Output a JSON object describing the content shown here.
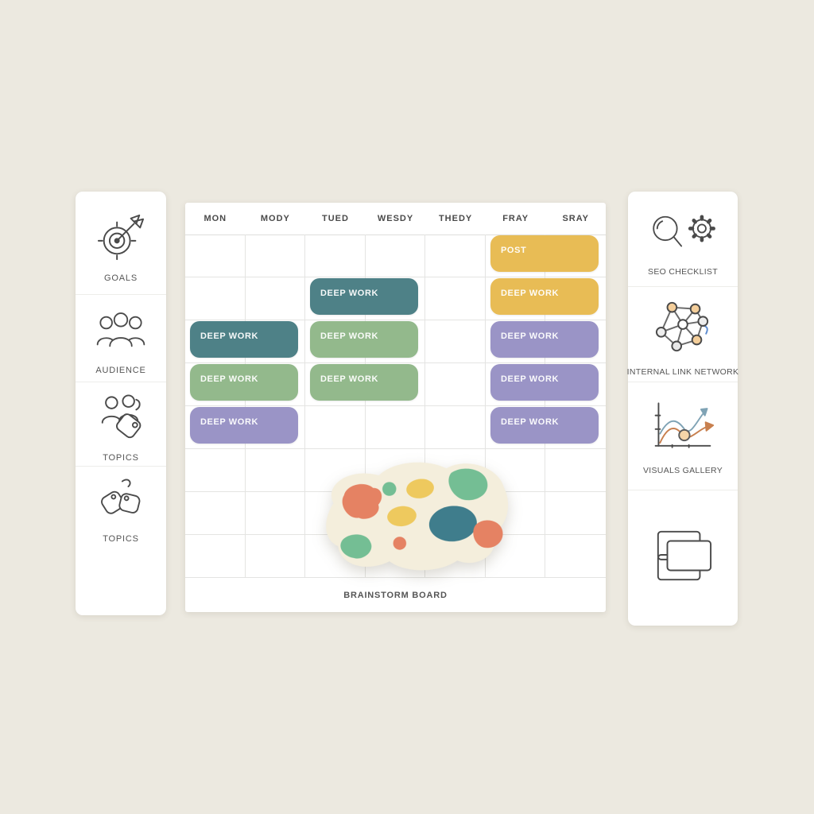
{
  "colors": {
    "background": "#ECE9E0",
    "panel": "#FFFFFF",
    "grid_line": "#E4E4E2",
    "teal": "#4E8187",
    "green": "#93B98C",
    "purple": "#9A94C6",
    "yellow": "#E8BC55",
    "board_cream": "#F4EEDC",
    "spot_salmon": "#E58263",
    "spot_green": "#74BE94",
    "spot_yellow": "#EEC95E",
    "spot_teal": "#3F7D8C"
  },
  "left_sidebar": {
    "items": [
      {
        "label": "GOALS",
        "icon": "goals-target-arrow-icon"
      },
      {
        "label": "AUDIENCE",
        "icon": "audience-people-icon"
      },
      {
        "label": "TOPICS",
        "icon": "topics-people-tag-icon"
      },
      {
        "label": "TOPICS",
        "icon": "topics-tags-icon"
      }
    ]
  },
  "calendar": {
    "day_headers": [
      "MON",
      "MODY",
      "TUED",
      "WESDY",
      "THEDY",
      "FRAY",
      "SRAY"
    ],
    "footer_label": "BRAINSTORM BOARD",
    "blocks": [
      {
        "day": "MON",
        "row": 3,
        "label": "DEEP WORK",
        "color": "teal"
      },
      {
        "day": "MON",
        "row": 4,
        "label": "DEEP WORK",
        "color": "green"
      },
      {
        "day": "MON",
        "row": 5,
        "label": "DEEP WORK",
        "color": "purple"
      },
      {
        "day": "TUED",
        "row": 2,
        "label": "DEEP WORK",
        "color": "teal"
      },
      {
        "day": "TUED",
        "row": 3,
        "label": "DEEP WORK",
        "color": "green"
      },
      {
        "day": "TUED",
        "row": 4,
        "label": "DEEP WORK",
        "color": "green"
      },
      {
        "day": "FRAY",
        "row": 1,
        "label": "POST",
        "color": "yellow"
      },
      {
        "day": "FRAY",
        "row": 2,
        "label": "DEEP WORK",
        "color": "yellow"
      },
      {
        "day": "FRAY",
        "row": 3,
        "label": "DEEP WORK",
        "color": "purple"
      },
      {
        "day": "FRAY",
        "row": 4,
        "label": "DEEP WORK",
        "color": "purple"
      },
      {
        "day": "FRAY",
        "row": 5,
        "label": "DEEP WORK",
        "color": "purple"
      }
    ]
  },
  "right_sidebar": {
    "items": [
      {
        "label": "SEO CHECKLIST",
        "icon": "seo-search-gear-icon"
      },
      {
        "label": "INTERNAL LINK NETWORK",
        "icon": "link-network-icon"
      },
      {
        "label": "VISUALS GALLERY",
        "icon": "chart-trend-icon"
      },
      {
        "label": "",
        "icon": "gallery-cards-icon"
      }
    ]
  }
}
